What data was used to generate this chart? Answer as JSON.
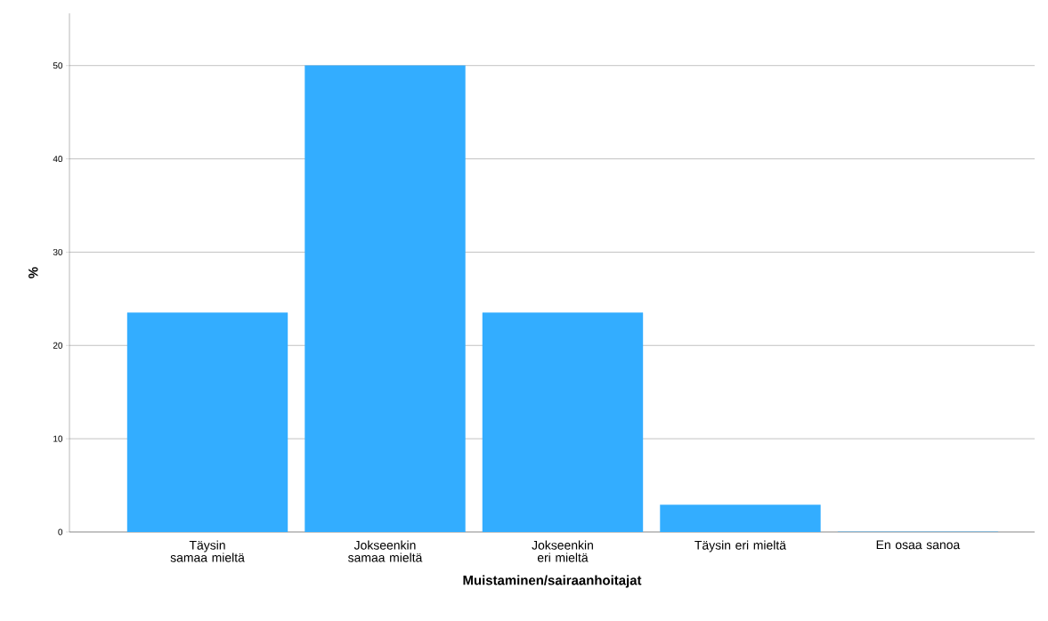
{
  "chart_data": {
    "type": "bar",
    "xlabel": "Muistaminen/sairaanhoitajat",
    "ylabel": "%",
    "categories": [
      "Täysin samaa mieltä",
      "Jokseenkin samaa mieltä",
      "Jokseenkin eri mieltä",
      "Täysin eri mieltä",
      "En osaa sanoa"
    ],
    "values": [
      23.5,
      50,
      23.5,
      2.9,
      0
    ],
    "color": "#33adff",
    "ylim": [
      0,
      55.6
    ],
    "yticks": [
      0,
      10,
      20,
      30,
      40,
      50
    ],
    "grid": "y"
  }
}
